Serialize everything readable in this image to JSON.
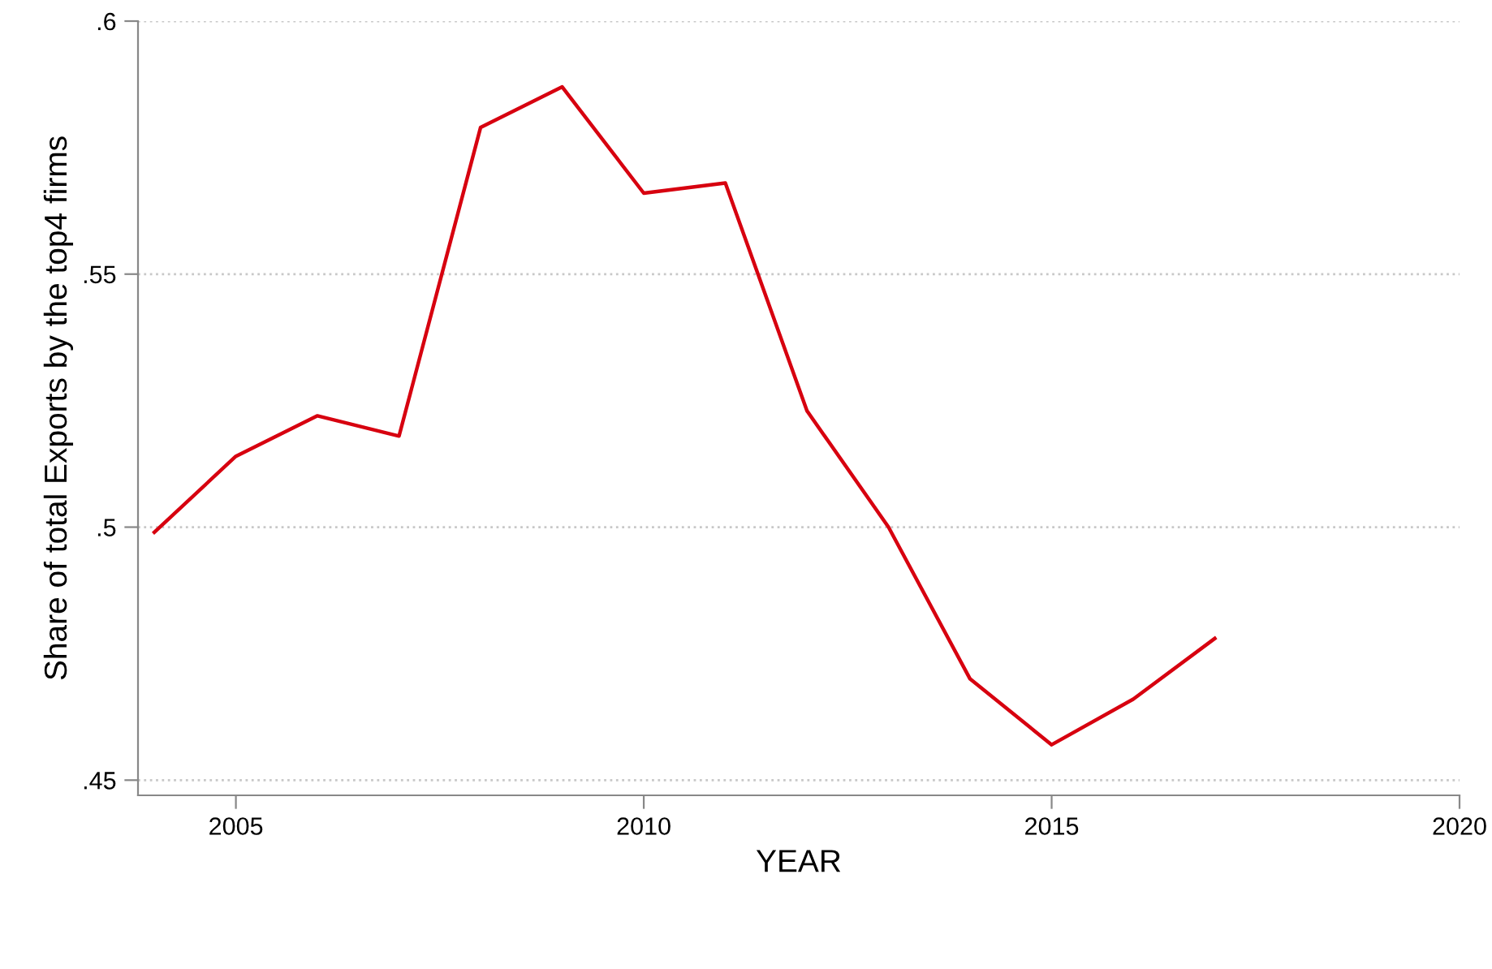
{
  "chart_data": {
    "type": "line",
    "xlabel": "YEAR",
    "ylabel": "Share of total Exports by the top4 firms",
    "x": [
      2004,
      2005,
      2006,
      2007,
      2008,
      2009,
      2010,
      2011,
      2012,
      2013,
      2014,
      2015,
      2016,
      2017
    ],
    "series": [
      {
        "color": "#d7000f",
        "values": [
          0.499,
          0.514,
          0.522,
          0.518,
          0.579,
          0.587,
          0.566,
          0.568,
          0.523,
          0.5,
          0.47,
          0.457,
          0.466,
          0.478
        ]
      }
    ],
    "xlim": [
      2003.8,
      2020
    ],
    "xticks": [
      2005,
      2010,
      2015,
      2020
    ],
    "ylim": [
      0.447,
      0.6
    ],
    "yticks": [
      {
        "value": 0.45,
        "label": ".45"
      },
      {
        "value": 0.5,
        "label": ".5"
      },
      {
        "value": 0.55,
        "label": ".55"
      },
      {
        "value": 0.6,
        "label": ".6"
      }
    ],
    "grid": "y",
    "legend": false,
    "marker": "none",
    "line_style": "solid"
  }
}
